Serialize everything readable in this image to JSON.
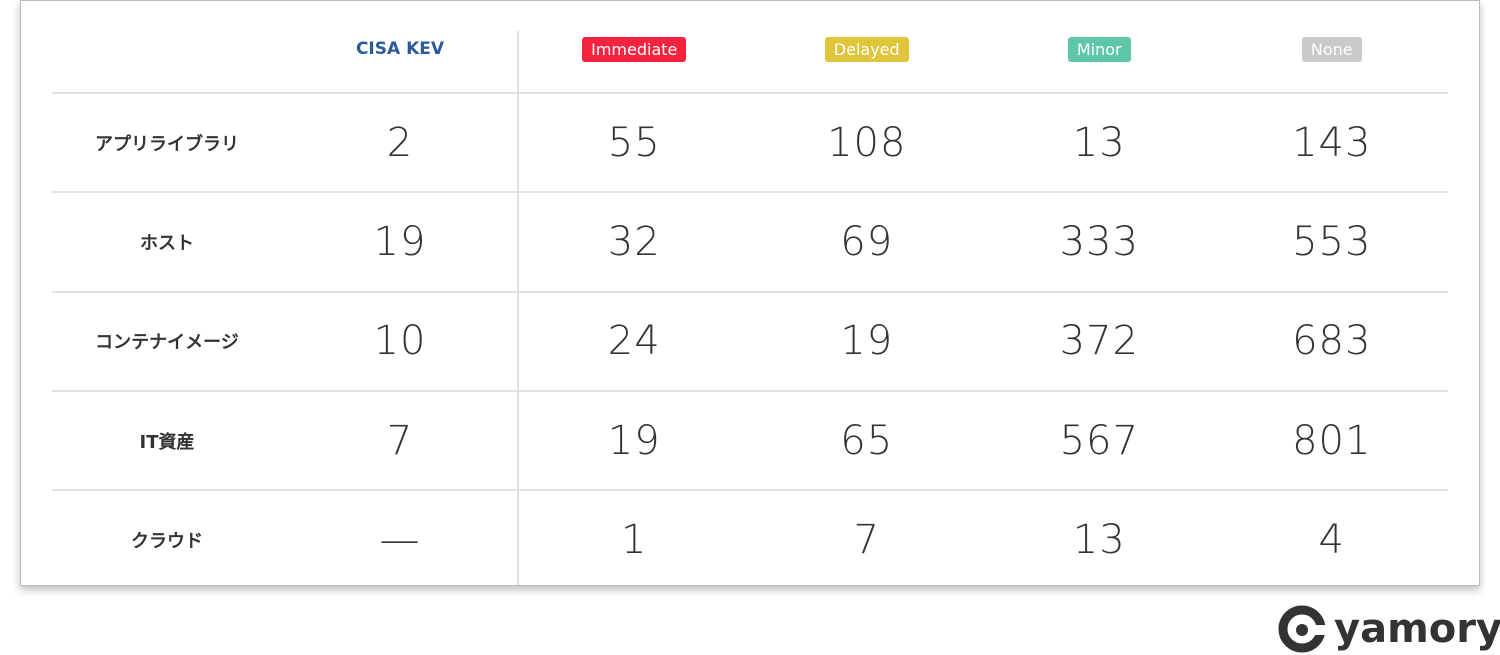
{
  "table": {
    "headers": [
      "CISA KEV",
      "Immediate",
      "Delayed",
      "Minor",
      "None"
    ],
    "header_colors": [
      "#2a5a9a",
      "#f5233f",
      "#e0c43a",
      "#5ec7aa",
      "#c8c9cb"
    ],
    "rows": [
      [
        "アプリライブラリ",
        2,
        55,
        108,
        13,
        143
      ],
      [
        "ホスト",
        19,
        32,
        69,
        333,
        553
      ],
      [
        "コンテナイメージ",
        10,
        24,
        19,
        372,
        683
      ],
      [
        "IT資産",
        7,
        19,
        65,
        567,
        801
      ],
      [
        "クラウド",
        "—",
        1,
        7,
        13,
        4
      ]
    ]
  },
  "logo": {
    "text": "yamory"
  }
}
